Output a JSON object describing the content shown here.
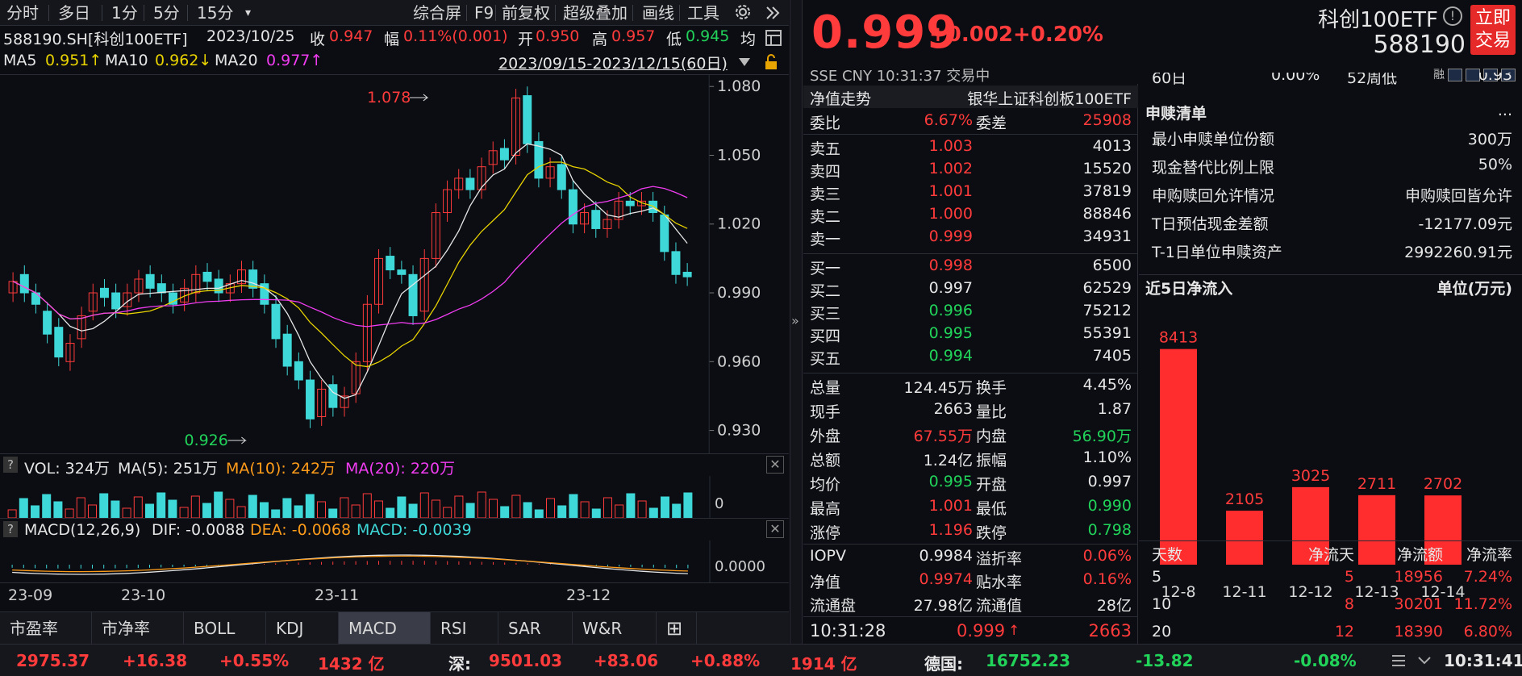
{
  "toolbar": {
    "items": [
      "分时",
      "多日",
      "1分",
      "5分",
      "15分",
      "▾",
      "综合屏",
      "F9",
      "前复权",
      "超级叠加",
      "画线",
      "工具"
    ]
  },
  "info1": {
    "code": "588190.SH[科创100ETF]",
    "date": "2023/10/25",
    "close_l": "收",
    "close": "0.947",
    "amp_l": "幅",
    "amp": "0.11%(0.001)",
    "open_l": "开",
    "open": "0.950",
    "high_l": "高",
    "high": "0.957",
    "low_l": "低",
    "low": "0.945",
    "avg_l": "均"
  },
  "info2": {
    "ma5_l": "MA5",
    "ma5": "0.951↑",
    "ma10_l": "MA10",
    "ma10": "0.962↓",
    "ma20_l": "MA20",
    "ma20": "0.977↑",
    "range": "2023/09/15-2023/12/15(60日)"
  },
  "kchart": {
    "max_label": "1.078",
    "min_label": "0.926",
    "yticks": [
      "1.080",
      "1.050",
      "1.020",
      "0.990",
      "0.960",
      "0.930"
    ]
  },
  "vol": {
    "help": "?",
    "title": "VOL: 324万",
    "ma5": "MA(5): 251万",
    "ma10": "MA(10): 242万",
    "ma20": "MA(20): 220万",
    "zero": "0",
    "close": "✕"
  },
  "macd": {
    "help": "?",
    "title": "MACD(12,26,9)",
    "dif": "DIF: -0.0088",
    "dea": "DEA: -0.0068",
    "macd": "MACD: -0.0039",
    "zero": "0.0000",
    "close": "✕"
  },
  "dates": [
    "23-09",
    "23-10",
    "23-11",
    "23-12"
  ],
  "tabs": [
    "市盈率",
    "市净率",
    "BOLL",
    "KDJ",
    "MACD",
    "RSI",
    "SAR",
    "W&R",
    "⊞"
  ],
  "divider": "»",
  "quote": {
    "price": "0.999",
    "change": "+0.002",
    "pct": "+0.20%",
    "name": "科创100ETF",
    "info": "!",
    "code": "588190",
    "trade": [
      "立即",
      "交易"
    ],
    "market": "SSE  CNY  10:31:37  交易中",
    "rong": "融"
  },
  "book": {
    "nav_l": "净值走势",
    "nav_r": "银华上证科创板100ETF",
    "wb_l": "委比",
    "wb": "6.67%",
    "wc_l": "委差",
    "wc": "25908",
    "asks": [
      {
        "l": "卖五",
        "p": "1.003",
        "v": "4013"
      },
      {
        "l": "卖四",
        "p": "1.002",
        "v": "15520"
      },
      {
        "l": "卖三",
        "p": "1.001",
        "v": "37819"
      },
      {
        "l": "卖二",
        "p": "1.000",
        "v": "88846"
      },
      {
        "l": "卖一",
        "p": "0.999",
        "v": "34931"
      }
    ],
    "bids": [
      {
        "l": "买一",
        "p": "0.998",
        "v": "6500"
      },
      {
        "l": "买二",
        "p": "0.997",
        "v": "62529"
      },
      {
        "l": "买三",
        "p": "0.996",
        "v": "75212"
      },
      {
        "l": "买四",
        "p": "0.995",
        "v": "55391"
      },
      {
        "l": "买五",
        "p": "0.994",
        "v": "7405"
      }
    ],
    "stats": [
      {
        "a": "总量",
        "b": "124.45万",
        "c": "换手",
        "d": "4.45%"
      },
      {
        "a": "现手",
        "b": "2663",
        "c": "量比",
        "d": "1.87"
      },
      {
        "a": "外盘",
        "b": "67.55万",
        "c": "内盘",
        "d": "56.90万"
      },
      {
        "a": "总额",
        "b": "1.24亿",
        "c": "振幅",
        "d": "1.10%"
      },
      {
        "a": "均价",
        "b": "0.995",
        "c": "开盘",
        "d": "0.997"
      },
      {
        "a": "最高",
        "b": "1.001",
        "c": "最低",
        "d": "0.990"
      },
      {
        "a": "涨停",
        "b": "1.196",
        "c": "跌停",
        "d": "0.798"
      }
    ],
    "iopv": [
      {
        "a": "IOPV",
        "b": "0.9984",
        "c": "溢折率",
        "d": "0.06%"
      },
      {
        "a": "净值",
        "b": "0.9974",
        "c": "贴水率",
        "d": "0.16%"
      },
      {
        "a": "流通盘",
        "b": "27.98亿",
        "c": "流通值",
        "d": "28亿"
      }
    ],
    "last": {
      "time": "10:31:28",
      "price": "0.999",
      "arrow": "↑",
      "vol": "2663"
    }
  },
  "right": {
    "top_l": "60日",
    "top_m": "0.00%",
    "top_m2": "52周低",
    "top_r": "0.93",
    "title": "申赎清单",
    "more": "...",
    "rows": [
      {
        "l": "最小申赎单位份额",
        "r": "300万"
      },
      {
        "l": "现金替代比例上限",
        "r": "50%"
      },
      {
        "l": "申购赎回允许情况",
        "r": "申购赎回皆允许"
      },
      {
        "l": "T日预估现金差额",
        "r": "-12177.09元"
      },
      {
        "l": "T-1日单位申赎资产",
        "r": "2992260.91元"
      }
    ],
    "flow_title": "近5日净流入",
    "flow_unit": "单位(万元)",
    "flow_head": [
      "天数",
      "净流天",
      "净流额",
      "净流率"
    ],
    "flow_rows": [
      [
        "5",
        "5",
        "18956",
        "7.24%"
      ],
      [
        "10",
        "8",
        "30201",
        "11.72%"
      ],
      [
        "20",
        "12",
        "18390",
        "6.80%"
      ]
    ]
  },
  "chart_data": [
    {
      "type": "bar",
      "title": "近5日净流入",
      "ylabel": "单位(万元)",
      "categories": [
        "12-8",
        "12-11",
        "12-12",
        "12-13",
        "12-14"
      ],
      "values": [
        8413,
        2105,
        3025,
        2711,
        2702
      ]
    },
    {
      "type": "line",
      "title": "588190.SH[科创100ETF]",
      "ylim": [
        0.92,
        1.085
      ],
      "series_note": "daily K-line 2023/09/15-2023/12/15",
      "max": 1.078,
      "min": 0.926
    }
  ],
  "status": {
    "sh": "2975.37",
    "sh_c": "+16.38",
    "sh_p": "+0.55%",
    "sh_v": "1432 亿",
    "sz_l": "深:",
    "sz": "9501.03",
    "sz_c": "+83.06",
    "sz_p": "+0.88%",
    "sz_v": "1914 亿",
    "de_l": "德国:",
    "de": "16752.23",
    "de_c": "-13.82",
    "de_p": "-0.08%",
    "time": "10:31:41"
  }
}
